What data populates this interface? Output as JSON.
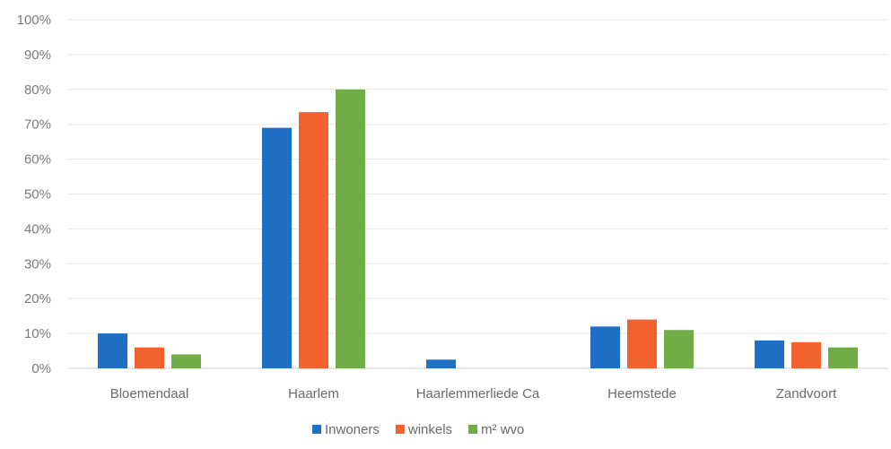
{
  "chart_data": {
    "type": "bar",
    "title": "",
    "xlabel": "",
    "ylabel": "",
    "categories": [
      "Bloemendaal",
      "Haarlem",
      "Haarlemmerliede Ca",
      "Heemstede",
      "Zandvoort"
    ],
    "series": [
      {
        "name": "Inwoners",
        "color": "#1f6fc5",
        "values": [
          10,
          69,
          2.5,
          12,
          8
        ]
      },
      {
        "name": "winkels",
        "color": "#f2622e",
        "values": [
          6,
          73.5,
          0,
          14,
          7.5
        ]
      },
      {
        "name": "m² wvo",
        "color": "#71ad47",
        "values": [
          4,
          80,
          0,
          11,
          6
        ]
      }
    ],
    "ylim": [
      0,
      100
    ],
    "yticks": [
      "0%",
      "10%",
      "20%",
      "30%",
      "40%",
      "50%",
      "60%",
      "70%",
      "80%",
      "90%",
      "100%"
    ],
    "grid": true,
    "legend_position": "bottom-center"
  }
}
